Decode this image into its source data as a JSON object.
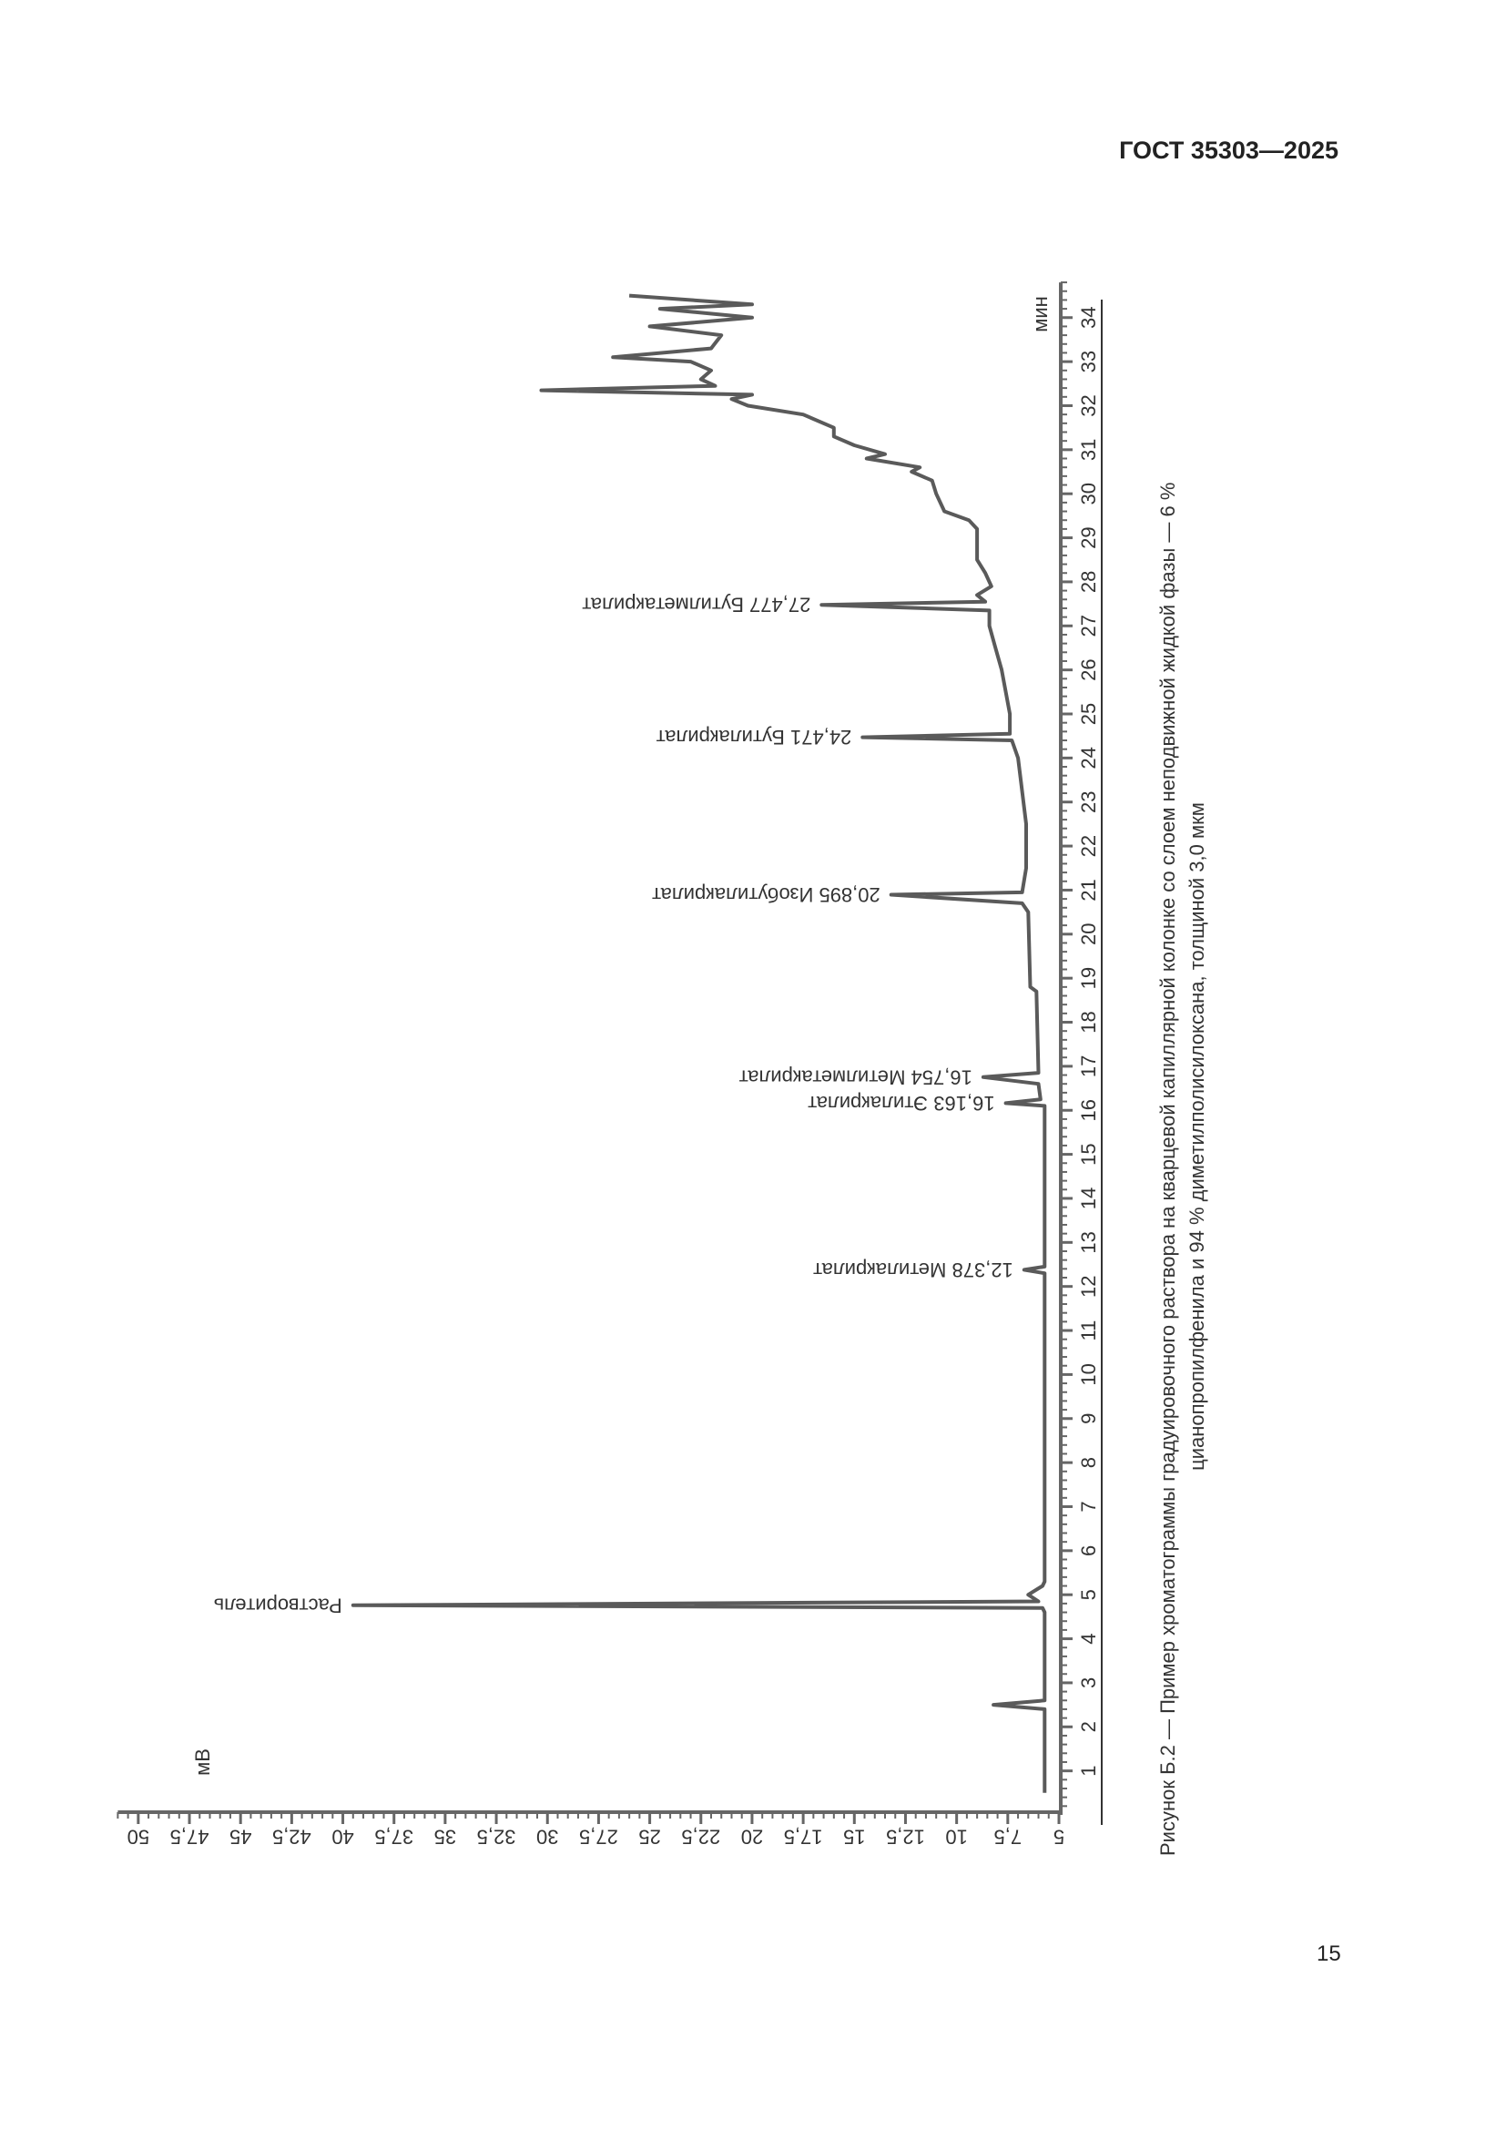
{
  "header": {
    "doc_code": "ГОСТ 35303—2025"
  },
  "page_number": "15",
  "caption": {
    "line1": "Рисунок Б.2 — Пример хроматограммы градуировочного раствора на кварцевой капиллярной колонке со слоем неподвижной жидкой фазы — 6 %",
    "line2": "цианопропилфенила и 94 % диметилполисилоксана, толщиной 3,0 мкм"
  },
  "chart_data": {
    "type": "line",
    "orientation": "rotated 90° counter-clockwise (time axis vertical, increasing upward)",
    "xlabel": "мин",
    "ylabel": "мВ",
    "xlim": [
      0,
      34.8
    ],
    "ylim": [
      5,
      51
    ],
    "x_ticks": [
      1,
      2,
      3,
      4,
      5,
      6,
      7,
      8,
      9,
      10,
      11,
      12,
      13,
      14,
      15,
      16,
      17,
      18,
      19,
      20,
      21,
      22,
      23,
      24,
      25,
      26,
      27,
      28,
      29,
      30,
      31,
      32,
      33,
      34
    ],
    "y_ticks": [
      "5",
      "7,5",
      "10",
      "12,5",
      "15",
      "17,5",
      "20",
      "22,5",
      "25",
      "27,5",
      "30",
      "32,5",
      "35",
      "37,5",
      "40",
      "42,5",
      "45",
      "47,5",
      "50"
    ],
    "y_tick_values": [
      5,
      7.5,
      10,
      12.5,
      15,
      17.5,
      20,
      22.5,
      25,
      27.5,
      30,
      32.5,
      35,
      37.5,
      40,
      42.5,
      45,
      47.5,
      50
    ],
    "grid": false,
    "line_color": "#5a5a5a",
    "series": [
      {
        "points": [
          [
            0.5,
            5.7
          ],
          [
            2.4,
            5.7
          ],
          [
            2.5,
            8.2
          ],
          [
            2.6,
            5.7
          ],
          [
            4.6,
            5.7
          ],
          [
            4.7,
            5.8
          ],
          [
            4.76,
            39.5
          ],
          [
            4.85,
            6.0
          ],
          [
            5.0,
            6.5
          ],
          [
            5.2,
            5.8
          ],
          [
            5.3,
            5.7
          ],
          [
            12.3,
            5.7
          ],
          [
            12.378,
            6.7
          ],
          [
            12.45,
            5.7
          ],
          [
            16.1,
            5.7
          ],
          [
            16.163,
            7.6
          ],
          [
            16.25,
            5.9
          ],
          [
            16.6,
            6.0
          ],
          [
            16.754,
            8.7
          ],
          [
            16.85,
            6.0
          ],
          [
            18.7,
            6.1
          ],
          [
            18.8,
            6.4
          ],
          [
            20.5,
            6.5
          ],
          [
            20.7,
            6.8
          ],
          [
            20.895,
            13.2
          ],
          [
            20.95,
            6.8
          ],
          [
            21.5,
            6.6
          ],
          [
            22.5,
            6.6
          ],
          [
            24.0,
            7.0
          ],
          [
            24.4,
            7.3
          ],
          [
            24.471,
            14.6
          ],
          [
            24.55,
            7.4
          ],
          [
            25,
            7.4
          ],
          [
            26,
            7.8
          ],
          [
            26.5,
            8.1
          ],
          [
            27,
            8.4
          ],
          [
            27.35,
            8.4
          ],
          [
            27.477,
            16.6
          ],
          [
            27.55,
            8.6
          ],
          [
            27.7,
            9.0
          ],
          [
            27.9,
            8.3
          ],
          [
            28.2,
            8.6
          ],
          [
            28.5,
            9.0
          ],
          [
            29.2,
            9.0
          ],
          [
            29.4,
            9.4
          ],
          [
            29.6,
            10.6
          ],
          [
            30.0,
            11.0
          ],
          [
            30.3,
            11.2
          ],
          [
            30.5,
            12.2
          ],
          [
            30.6,
            11.8
          ],
          [
            30.8,
            14.4
          ],
          [
            30.9,
            13.5
          ],
          [
            31.1,
            15.0
          ],
          [
            31.3,
            16.0
          ],
          [
            31.5,
            16.0
          ],
          [
            31.8,
            17.5
          ],
          [
            32.0,
            20.2
          ],
          [
            32.15,
            21.0
          ],
          [
            32.25,
            20.0
          ],
          [
            32.35,
            30.3
          ],
          [
            32.45,
            21.8
          ],
          [
            32.6,
            22.5
          ],
          [
            32.8,
            22.0
          ],
          [
            33.0,
            23.0
          ],
          [
            33.1,
            26.8
          ],
          [
            33.3,
            22.0
          ],
          [
            33.6,
            21.5
          ],
          [
            33.8,
            25.0
          ],
          [
            34.0,
            20.0
          ],
          [
            34.2,
            24.5
          ],
          [
            34.3,
            20.0
          ],
          [
            34.5,
            26.0
          ]
        ]
      }
    ],
    "annotations": [
      {
        "label": "Растворитель",
        "x": 4.76,
        "y": 39.5
      },
      {
        "label": "12,378 Метилакрилат",
        "x": 12.378,
        "y": 6.7
      },
      {
        "label": "16,163 Этилакрилат",
        "x": 16.163,
        "y": 7.6
      },
      {
        "label": "16,754 Метилметакрилат",
        "x": 16.754,
        "y": 8.7
      },
      {
        "label": "20,895 Изобутилакрилат",
        "x": 20.895,
        "y": 13.2
      },
      {
        "label": "24,471 Бутилакрилат",
        "x": 24.471,
        "y": 14.6
      },
      {
        "label": "27,477 Бутилметакрилат",
        "x": 27.477,
        "y": 16.6
      }
    ]
  }
}
